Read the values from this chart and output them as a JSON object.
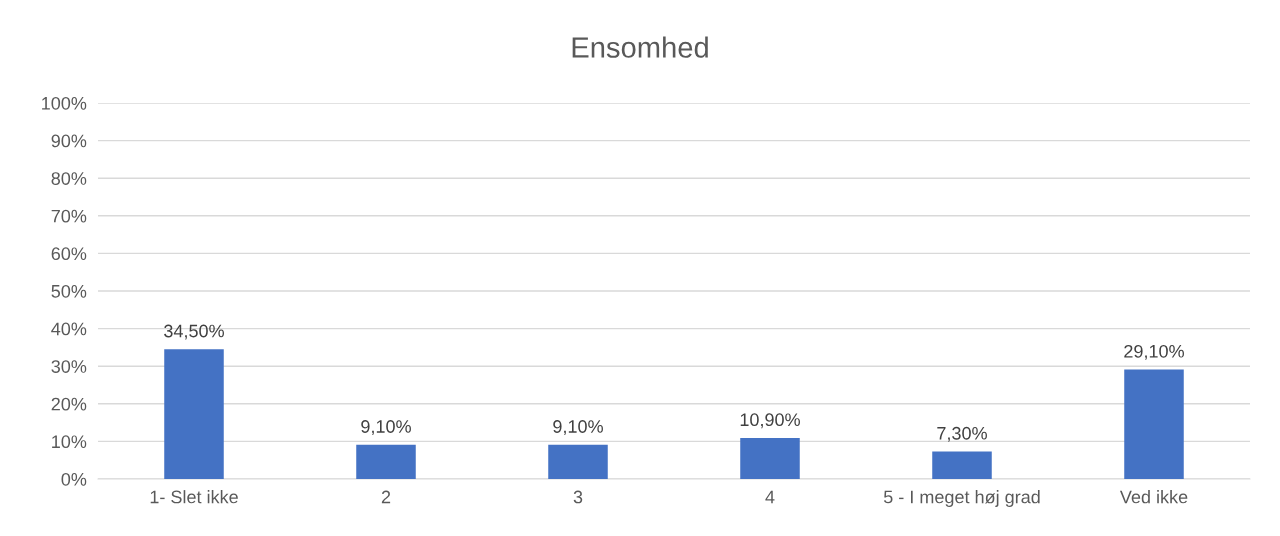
{
  "chart_data": {
    "type": "bar",
    "title": "Ensomhed",
    "categories": [
      "1- Slet ikke",
      "2",
      "3",
      "4",
      "5 - I meget høj grad",
      "Ved ikke"
    ],
    "values": [
      34.5,
      9.1,
      9.1,
      10.9,
      7.3,
      29.1
    ],
    "value_labels": [
      "34,50%",
      "9,10%",
      "9,10%",
      "10,90%",
      "7,30%",
      "29,10%"
    ],
    "color": "#4472c4",
    "ylim": [
      0,
      100
    ],
    "yticks": [
      {
        "value": 0,
        "label": "0%"
      },
      {
        "value": 10,
        "label": "10%"
      },
      {
        "value": 20,
        "label": "20%"
      },
      {
        "value": 30,
        "label": "30%"
      },
      {
        "value": 40,
        "label": "40%"
      },
      {
        "value": 50,
        "label": "50%"
      },
      {
        "value": 60,
        "label": "60%"
      },
      {
        "value": 70,
        "label": "70%"
      },
      {
        "value": 80,
        "label": "80%"
      },
      {
        "value": 90,
        "label": "90%"
      },
      {
        "value": 100,
        "label": "100%"
      }
    ],
    "grid": "y",
    "legend": false
  }
}
